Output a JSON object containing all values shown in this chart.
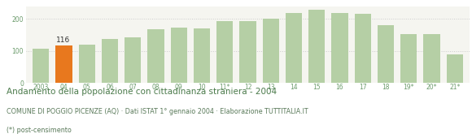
{
  "categories": [
    "2003",
    "04",
    "05",
    "06",
    "07",
    "08",
    "09",
    "10",
    "11*",
    "12",
    "13",
    "14",
    "15",
    "16",
    "17",
    "18",
    "19*",
    "20*",
    "21*"
  ],
  "values": [
    107,
    116,
    120,
    138,
    142,
    168,
    172,
    170,
    193,
    193,
    200,
    220,
    228,
    218,
    215,
    180,
    153,
    152,
    90
  ],
  "highlight_index": 1,
  "highlight_value_label": "116",
  "bar_color": "#b5cfa5",
  "highlight_color": "#e8781e",
  "title": "Andamento della popolazione con cittadinanza straniera - 2004",
  "subtitle": "COMUNE DI POGGIO PICENZE (AQ) · Dati ISTAT 1° gennaio 2004 · Elaborazione TUTTITALIA.IT",
  "footnote": "(*) post-censimento",
  "ylim": [
    0,
    240
  ],
  "yticks": [
    0,
    100,
    200
  ],
  "grid_color": "#cccccc",
  "background_color": "#f5f5f0",
  "text_color_title": "#4a7a4a",
  "text_color_sub": "#5a7a5a",
  "text_color_tick": "#6a9a6a",
  "title_fontsize": 7.5,
  "subtitle_fontsize": 5.8,
  "footnote_fontsize": 5.8,
  "tick_fontsize": 5.5,
  "label_fontsize": 6.5
}
